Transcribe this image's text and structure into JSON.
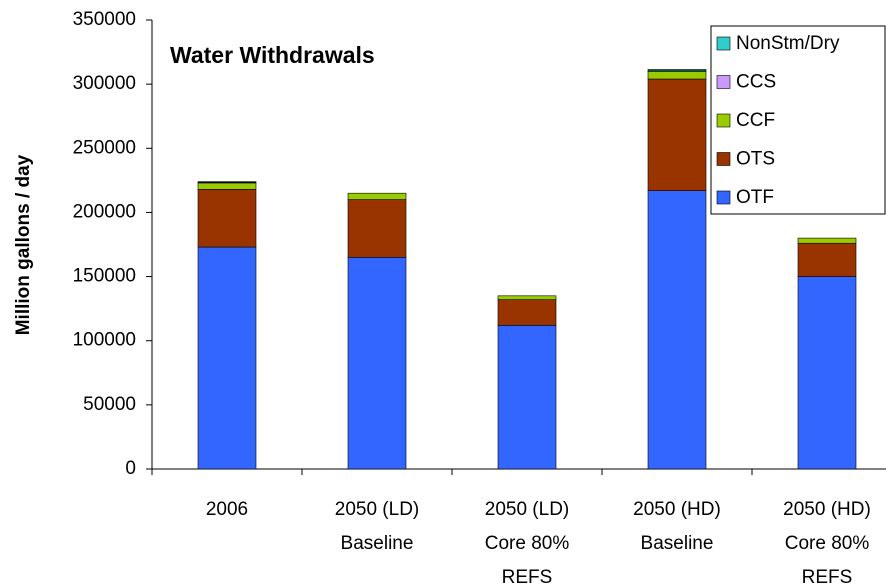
{
  "chart_data": {
    "type": "stacked_bar",
    "title": "Water Withdrawals",
    "y_label": "Million gallons / day",
    "categories": [
      [
        "2006"
      ],
      [
        "2050 (LD)",
        "Baseline"
      ],
      [
        "2050 (LD)",
        "Core 80%",
        "REFS"
      ],
      [
        "2050 (HD)",
        "Baseline"
      ],
      [
        "2050 (HD)",
        "Core 80%",
        "REFS"
      ]
    ],
    "series": [
      {
        "name": "OTF",
        "color": "#3366ff",
        "values": [
          173000,
          165000,
          112000,
          217000,
          150000
        ]
      },
      {
        "name": "OTS",
        "color": "#993300",
        "values": [
          45000,
          45000,
          20000,
          87000,
          26000
        ]
      },
      {
        "name": "CCF",
        "color": "#99cc00",
        "values": [
          5000,
          5000,
          3000,
          6000,
          4000
        ]
      },
      {
        "name": "CCS",
        "color": "#cc99ff",
        "values": [
          500,
          0,
          0,
          500,
          0
        ]
      },
      {
        "name": "NonStm/Dry",
        "color": "#33cccc",
        "values": [
          500,
          0,
          0,
          1000,
          0
        ]
      }
    ],
    "ylim": [
      0,
      350000
    ],
    "yticks": [
      0,
      50000,
      100000,
      150000,
      200000,
      250000,
      300000,
      350000
    ]
  }
}
